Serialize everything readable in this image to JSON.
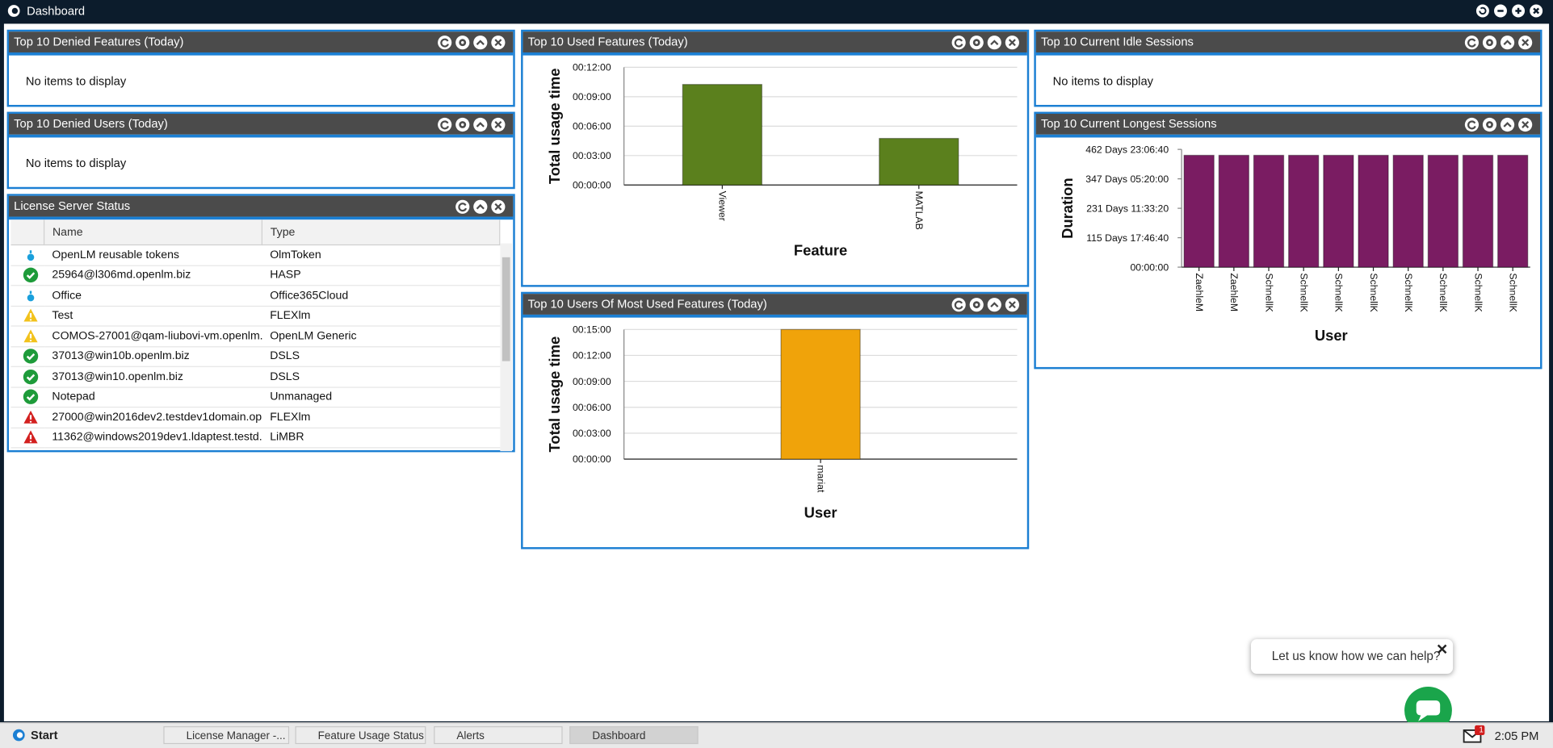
{
  "window": {
    "title": "Dashboard"
  },
  "panels": [
    {
      "title": "Top 10 Denied Features (Today)",
      "message": "No items to display"
    },
    {
      "title": "Top 10 Denied Users (Today)",
      "message": "No items to display"
    },
    {
      "title": "License Server Status",
      "table": {
        "columns": [
          "Name",
          "Type"
        ],
        "rows": [
          [
            "OpenLM reusable tokens",
            "OlmToken"
          ],
          [
            "25964@l306md.openlm.biz",
            "HASP"
          ],
          [
            "Office",
            "Office365Cloud"
          ],
          [
            "Test",
            "FLEXlm"
          ],
          [
            "COMOS-27001@qam-liubovi-vm.openlm....",
            "OpenLM Generic"
          ],
          [
            "37013@win10b.openlm.biz",
            "DSLS"
          ],
          [
            "37013@win10.openlm.biz",
            "DSLS"
          ],
          [
            "Notepad",
            "Unmanaged"
          ],
          [
            "27000@win2016dev2.testdev1domain.op...",
            "FLEXlm"
          ],
          [
            "11362@windows2019dev1.ldaptest.testd...",
            "LiMBR"
          ]
        ]
      }
    },
    {
      "title": "Top 10 Used Features (Today)",
      "chart_data": {
        "type": "bar",
        "y_label": "Total usage time",
        "x_label": "Feature",
        "categories": [
          "Viewer",
          "MATLAB"
        ],
        "values": [
          615,
          285
        ],
        "color": "#5b801d",
        "ylim": [
          0,
          720
        ],
        "yticks": [
          {
            "value": 0,
            "label": "00:00:00"
          },
          {
            "value": 180,
            "label": "00:03:00"
          },
          {
            "value": 360,
            "label": "00:06:00"
          },
          {
            "value": 540,
            "label": "00:09:00"
          },
          {
            "value": 720,
            "label": "00:12:00"
          }
        ],
        "grid": true
      }
    },
    {
      "title": "Top 10 Users Of Most Used Features (Today)",
      "chart_data": {
        "type": "bar",
        "y_label": "Total usage time",
        "x_label": "User",
        "categories": [
          "mariat"
        ],
        "values": [
          900
        ],
        "color": "#f0a30a",
        "ylim": [
          0,
          900
        ],
        "yticks": [
          {
            "value": 0,
            "label": "00:00:00"
          },
          {
            "value": 180,
            "label": "00:03:00"
          },
          {
            "value": 360,
            "label": "00:06:00"
          },
          {
            "value": 540,
            "label": "00:09:00"
          },
          {
            "value": 720,
            "label": "00:12:00"
          },
          {
            "value": 900,
            "label": "00:15:00"
          }
        ],
        "grid": true
      }
    },
    {
      "title": "Top 10 Current Idle Sessions",
      "message": "No items to display"
    },
    {
      "title": "Top 10 Current Longest Sessions",
      "chart_data": {
        "type": "bar",
        "y_label": "Duration",
        "x_label": "User",
        "categories": [
          "ZaehleM",
          "ZaehleM",
          "SchnellK",
          "SchnellK",
          "SchnellK",
          "SchnellK",
          "SchnellK",
          "SchnellK",
          "SchnellK",
          "SchnellK"
        ],
        "values": [
          38000000,
          38000000,
          38000000,
          38000000,
          38000000,
          38000000,
          38000000,
          38000000,
          38000000,
          38000000
        ],
        "color": "#7a1c62",
        "ylim": [
          0,
          40000000
        ],
        "yticks": [
          {
            "value": 0,
            "label": "00:00:00"
          },
          {
            "value": 10000000,
            "label": "115 Days 17:46:40"
          },
          {
            "value": 20000000,
            "label": "231 Days 11:33:20"
          },
          {
            "value": 30000000,
            "label": "347 Days 05:20:00"
          },
          {
            "value": 40000000,
            "label": "462 Days 23:06:40"
          }
        ],
        "grid": false
      }
    }
  ],
  "chat": {
    "prompt": "Let us know how we can help?"
  },
  "taskbar": {
    "start": "Start",
    "tasks": [
      "License Manager -...",
      "Feature Usage Status",
      "Alerts",
      "Dashboard"
    ],
    "mail_badge": 1,
    "clock": "2:05 PM"
  }
}
